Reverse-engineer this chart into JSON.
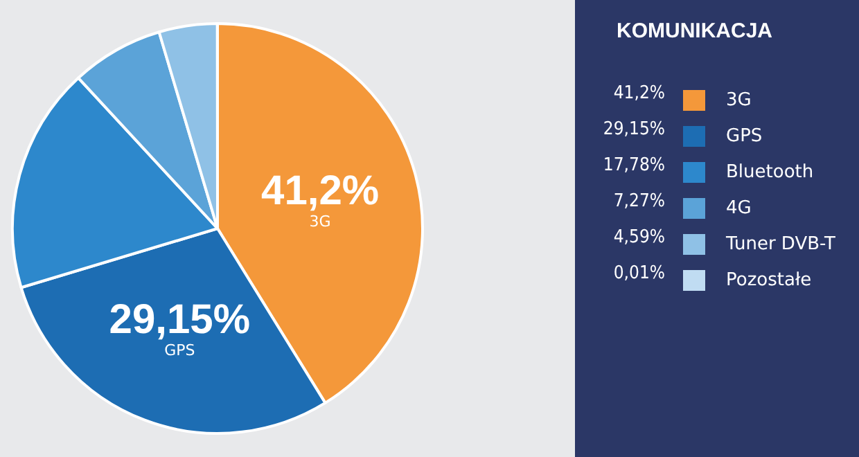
{
  "chart_data": {
    "type": "pie",
    "legend_title": "KOMUNIKACJA",
    "categories": [
      "3G",
      "GPS",
      "Bluetooth",
      "4G",
      "Tuner DVB-T",
      "Pozostałe"
    ],
    "values": [
      41.2,
      29.15,
      17.78,
      7.27,
      4.59,
      0.01
    ],
    "value_labels": [
      "41,2%",
      "29,15%",
      "17,78%",
      "7,27%",
      "4,59%",
      "0,01%"
    ],
    "colors": [
      "#f4983a",
      "#1d6db3",
      "#2d88cc",
      "#5ba3d8",
      "#8fc1e6",
      "#c0dcf2"
    ],
    "legend": "right"
  }
}
